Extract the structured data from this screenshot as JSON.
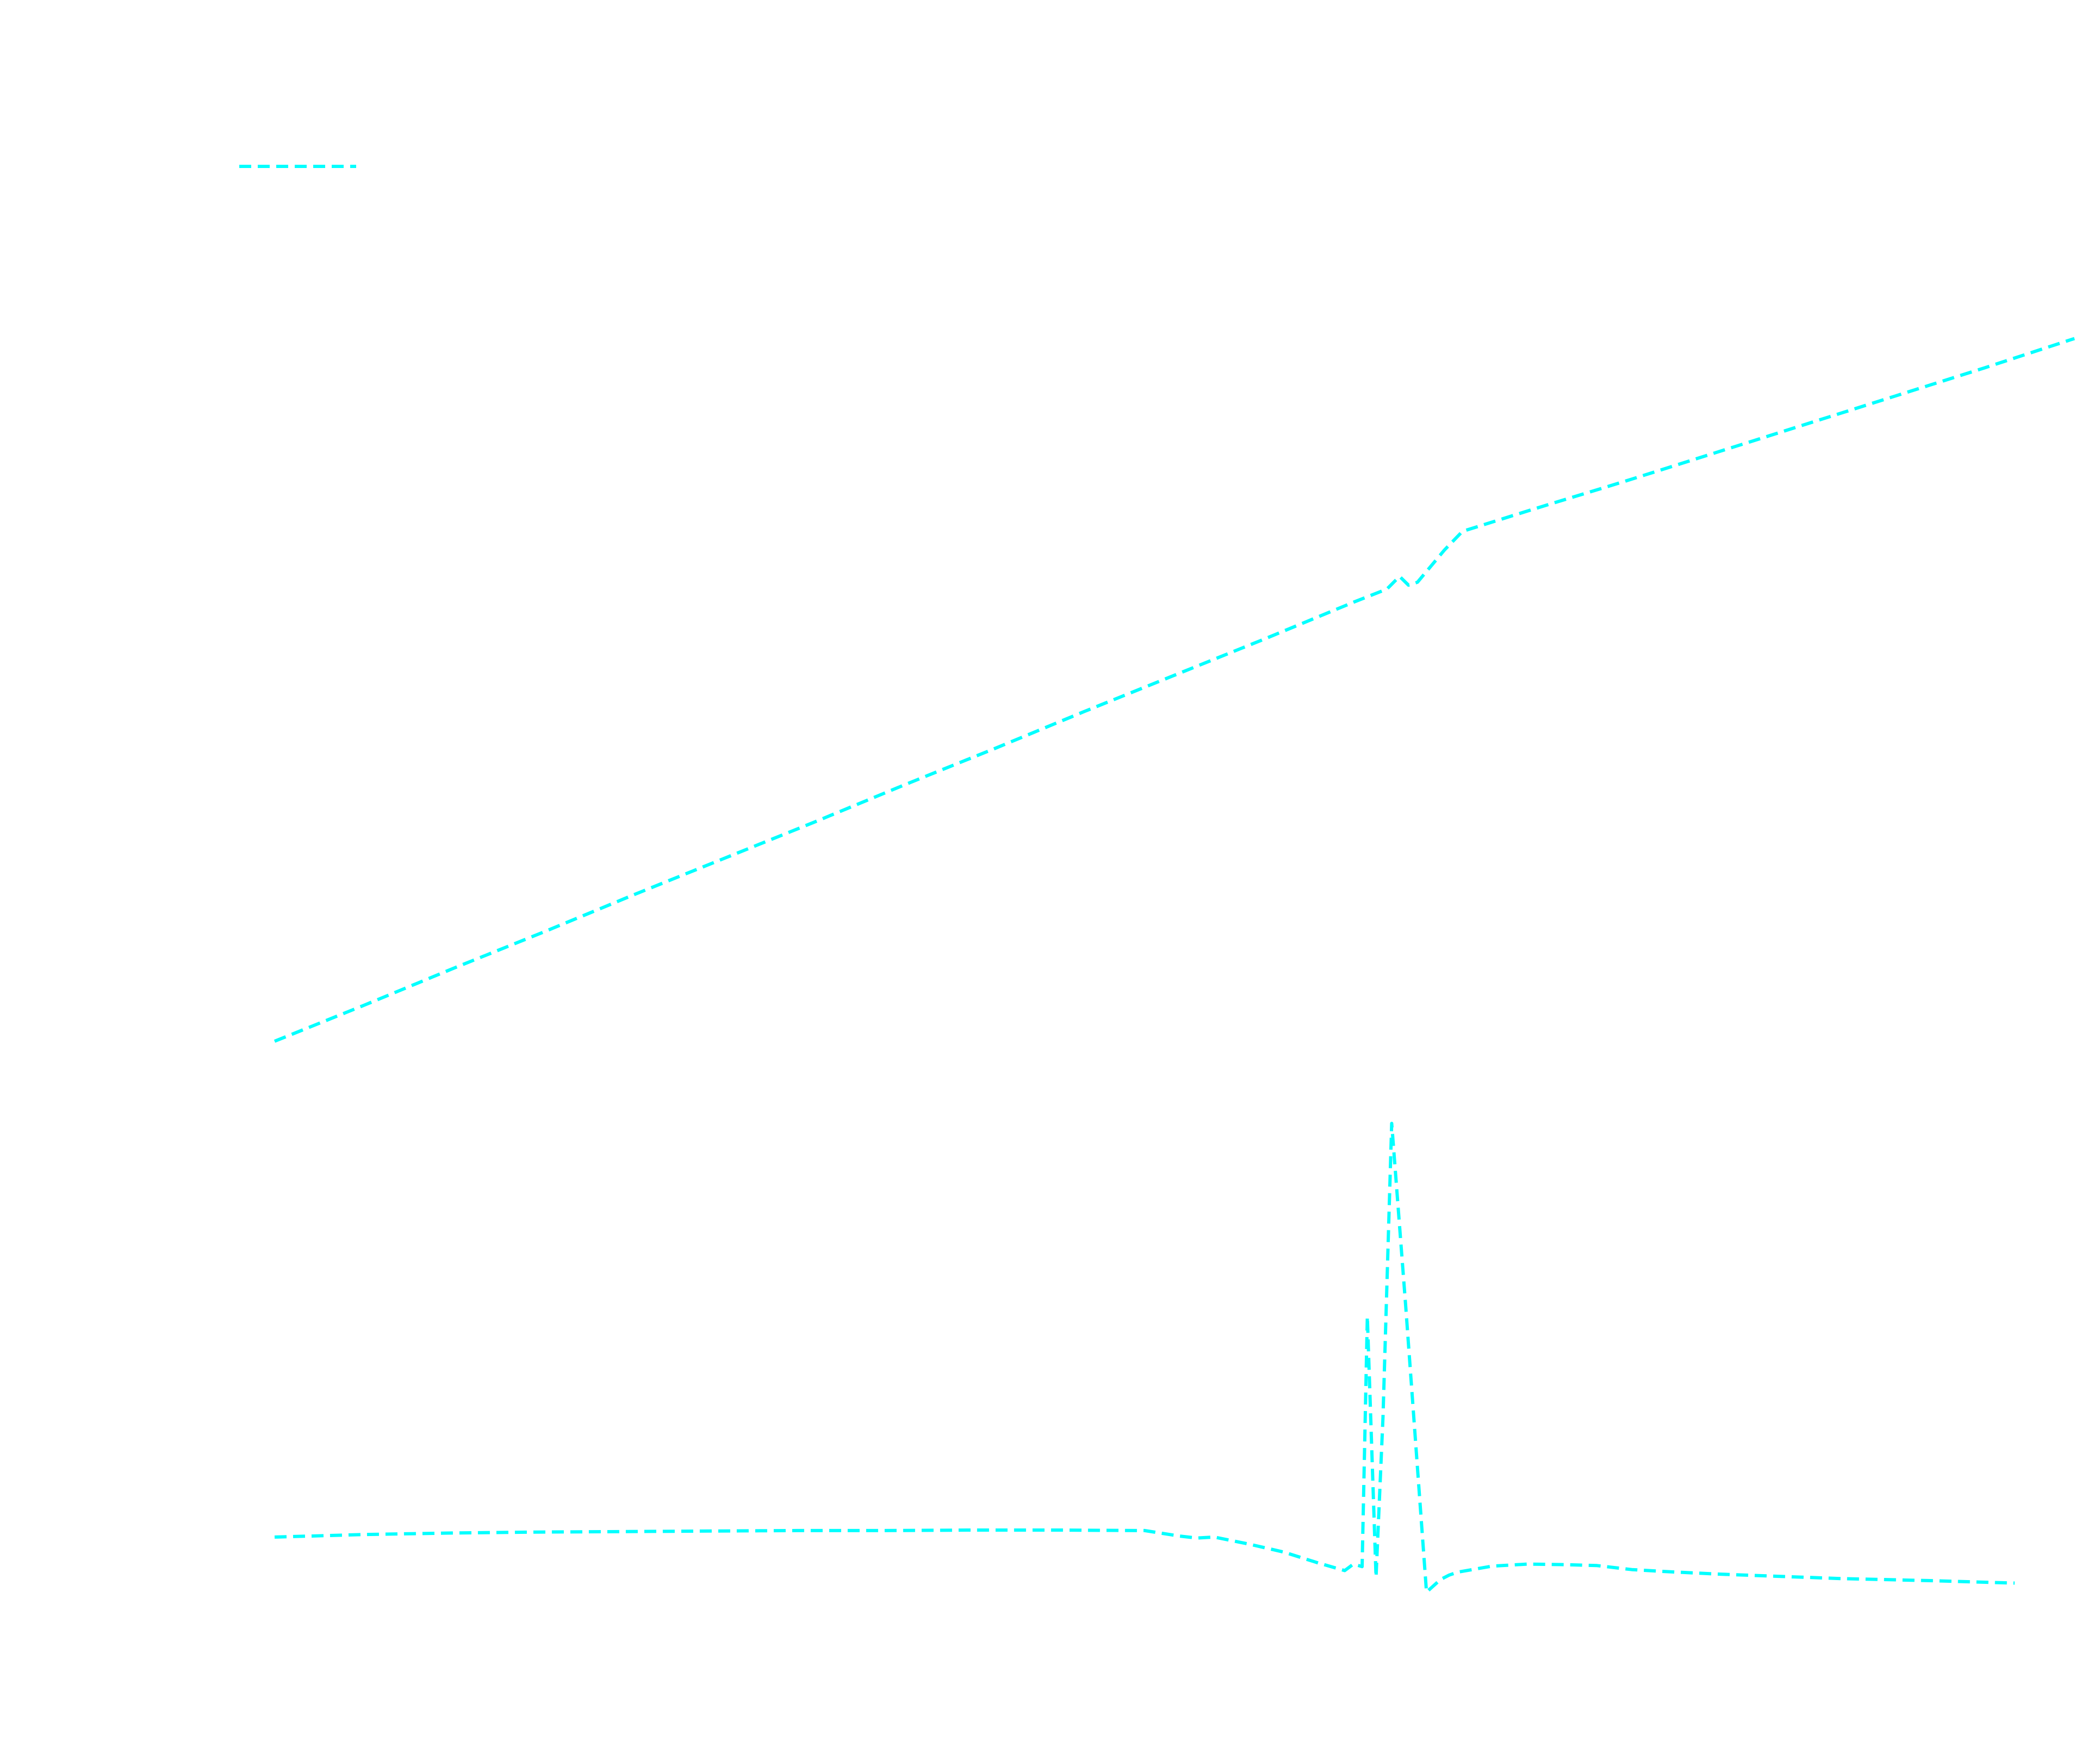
{
  "chart_data": [
    {
      "type": "line",
      "title": "",
      "xlabel": "",
      "ylabel": "",
      "grid": false,
      "axes_visible": false,
      "legend": {
        "placement": "top-left",
        "entries": [
          {
            "label": "",
            "color": "#00ffff",
            "line_style": "dashed"
          }
        ]
      },
      "xlim": [
        0,
        1
      ],
      "ylim": [
        0,
        1
      ],
      "series": [
        {
          "color": "#00ffff",
          "line_style": "dashed",
          "x": [
            0.0,
            0.05,
            0.1,
            0.15,
            0.2,
            0.25,
            0.3,
            0.35,
            0.4,
            0.45,
            0.5,
            0.55,
            0.6,
            0.618,
            0.625,
            0.63,
            0.635,
            0.65,
            0.66,
            0.7,
            0.75,
            0.8,
            0.85,
            0.9,
            0.95,
            1.0
          ],
          "y": [
            0.0,
            0.037,
            0.075,
            0.112,
            0.15,
            0.187,
            0.224,
            0.262,
            0.299,
            0.337,
            0.374,
            0.411,
            0.449,
            0.462,
            0.475,
            0.466,
            0.469,
            0.502,
            0.521,
            0.544,
            0.572,
            0.601,
            0.63,
            0.659,
            0.688,
            0.718
          ]
        }
      ]
    },
    {
      "type": "line",
      "title": "",
      "xlabel": "",
      "ylabel": "",
      "grid": false,
      "axes_visible": false,
      "xlim": [
        0,
        1
      ],
      "ylim": [
        0,
        1
      ],
      "series": [
        {
          "color": "#00ffff",
          "line_style": "dashed",
          "x": [
            0.0,
            0.05,
            0.1,
            0.15,
            0.2,
            0.25,
            0.3,
            0.35,
            0.4,
            0.45,
            0.5,
            0.52,
            0.53,
            0.54,
            0.56,
            0.58,
            0.6,
            0.615,
            0.62,
            0.625,
            0.628,
            0.633,
            0.637,
            0.642,
            0.65,
            0.662,
            0.67,
            0.675,
            0.68,
            0.7,
            0.72,
            0.74,
            0.76,
            0.78,
            0.8,
            0.83,
            0.86,
            0.9,
            0.95,
            1.0
          ],
          "y": [
            0.161,
            0.166,
            0.169,
            0.171,
            0.172,
            0.173,
            0.174,
            0.174,
            0.175,
            0.175,
            0.174,
            0.163,
            0.159,
            0.161,
            0.147,
            0.131,
            0.109,
            0.094,
            0.107,
            0.102,
            0.602,
            0.081,
            0.401,
            0.988,
            0.625,
            0.051,
            0.076,
            0.085,
            0.091,
            0.103,
            0.107,
            0.106,
            0.104,
            0.096,
            0.092,
            0.087,
            0.083,
            0.078,
            0.074,
            0.069
          ]
        }
      ]
    }
  ]
}
